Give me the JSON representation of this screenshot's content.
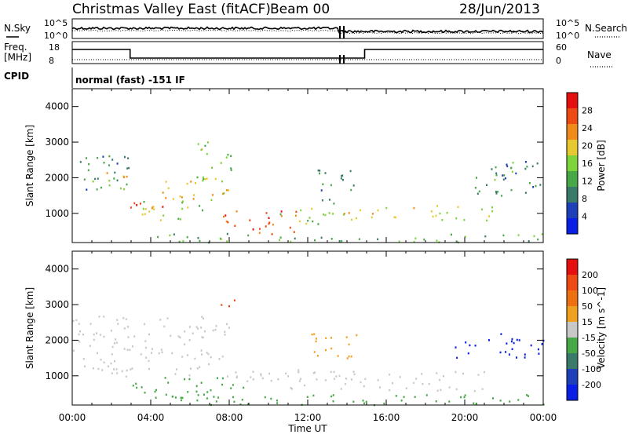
{
  "header": {
    "station": "Christmas Valley East (fitACF)",
    "beam": "Beam 00",
    "date": "28/Jun/2013"
  },
  "noise_panel": {
    "left_label": "N.Sky",
    "right_label": "N.Search",
    "left_ticks": [
      "10^5",
      "10^0"
    ],
    "right_ticks": [
      "10^5",
      "10^0"
    ]
  },
  "freq_panel": {
    "left_label_line1": "Freq.",
    "left_label_line2": "[MHz]",
    "right_label": "Nave",
    "left_ticks": [
      "18",
      "8"
    ],
    "right_ticks": [
      "60",
      "0"
    ]
  },
  "cpid": {
    "label": "CPID",
    "value": "normal (fast) -151 IF"
  },
  "x_axis": {
    "label": "Time UT",
    "ticks": [
      "00:00",
      "04:00",
      "08:00",
      "12:00",
      "16:00",
      "20:00",
      "00:00"
    ]
  },
  "chart_data": [
    {
      "type": "heatmap",
      "panel": "power",
      "ylabel": "Slant Range [km]",
      "yticks": [
        1000,
        2000,
        3000,
        4000
      ],
      "ylim": [
        180,
        4500
      ],
      "xlim_hours": [
        0,
        24
      ],
      "colorbar_label": "Power [dB]",
      "colorbar_ticks": [
        "28",
        "24",
        "20",
        "16",
        "12",
        "8",
        "4"
      ],
      "colorbar_range": [
        0,
        30
      ],
      "colors": [
        "#0a1fe6",
        "#1f3fb8",
        "#3a7a6a",
        "#48a848",
        "#7fd33a",
        "#e6c830",
        "#f08a1a",
        "#ee4a14",
        "#e60f0f"
      ],
      "scatter_regions": [
        {
          "t0": 0.0,
          "t1": 2.9,
          "r0": 1600,
          "r1": 2700,
          "p": 10
        },
        {
          "t0": 1.0,
          "t1": 2.8,
          "r0": 1700,
          "r1": 2200,
          "p": 18
        },
        {
          "t0": 2.9,
          "t1": 5.0,
          "r0": 1100,
          "r1": 1500,
          "p": 25
        },
        {
          "t0": 3.5,
          "t1": 7.0,
          "r0": 800,
          "r1": 1400,
          "p": 16
        },
        {
          "t0": 4.5,
          "t1": 8.0,
          "r0": 1400,
          "r1": 2100,
          "p": 20
        },
        {
          "t0": 6.3,
          "t1": 8.2,
          "r0": 1900,
          "r1": 3100,
          "p": 14
        },
        {
          "t0": 7.5,
          "t1": 11.5,
          "r0": 400,
          "r1": 1100,
          "p": 24
        },
        {
          "t0": 10.5,
          "t1": 13.5,
          "r0": 700,
          "r1": 1200,
          "p": 14
        },
        {
          "t0": 12.5,
          "t1": 14.5,
          "r0": 1300,
          "r1": 2300,
          "p": 10
        },
        {
          "t0": 13.5,
          "t1": 17.5,
          "r0": 800,
          "r1": 1200,
          "p": 18
        },
        {
          "t0": 18.0,
          "t1": 21.5,
          "r0": 800,
          "r1": 1300,
          "p": 15
        },
        {
          "t0": 20.5,
          "t1": 22.5,
          "r0": 1500,
          "r1": 2500,
          "p": 12
        },
        {
          "t0": 21.5,
          "t1": 24.0,
          "r0": 1600,
          "r1": 2500,
          "p": 8
        },
        {
          "t0": 4.0,
          "t1": 24.0,
          "r0": 200,
          "r1": 450,
          "p": 12
        }
      ]
    },
    {
      "type": "heatmap",
      "panel": "velocity",
      "ylabel": "Slant Range [km]",
      "yticks": [
        1000,
        2000,
        3000,
        4000
      ],
      "ylim": [
        180,
        4500
      ],
      "xlim_hours": [
        0,
        24
      ],
      "colorbar_label": "Velocity [m s^-1]",
      "colorbar_ticks": [
        "200",
        "100",
        "50",
        "15",
        "-15",
        "-50",
        "-100",
        "-200"
      ],
      "colorbar_range": [
        -250,
        250
      ],
      "colors": [
        "#0a1fe6",
        "#1f3fb8",
        "#3a7a6a",
        "#48a848",
        "#c8c8c8",
        "#f0a020",
        "#ee7010",
        "#ee4a14",
        "#e60f0f"
      ],
      "scatter_regions": [
        {
          "t0": 0.0,
          "t1": 8.0,
          "r0": 1000,
          "r1": 2700,
          "v": 0
        },
        {
          "t0": 3.0,
          "t1": 9.0,
          "r0": 400,
          "r1": 1000,
          "v": -40
        },
        {
          "t0": 7.5,
          "t1": 8.3,
          "r0": 2800,
          "r1": 3200,
          "v": 180
        },
        {
          "t0": 8.0,
          "t1": 21.0,
          "r0": 600,
          "r1": 1200,
          "v": 0
        },
        {
          "t0": 12.0,
          "t1": 14.5,
          "r0": 1500,
          "r1": 2300,
          "v": 60
        },
        {
          "t0": 19.5,
          "t1": 24.0,
          "r0": 1500,
          "r1": 2200,
          "v": -200
        },
        {
          "t0": 4.0,
          "t1": 24.0,
          "r0": 200,
          "r1": 500,
          "v": -60
        }
      ]
    }
  ]
}
